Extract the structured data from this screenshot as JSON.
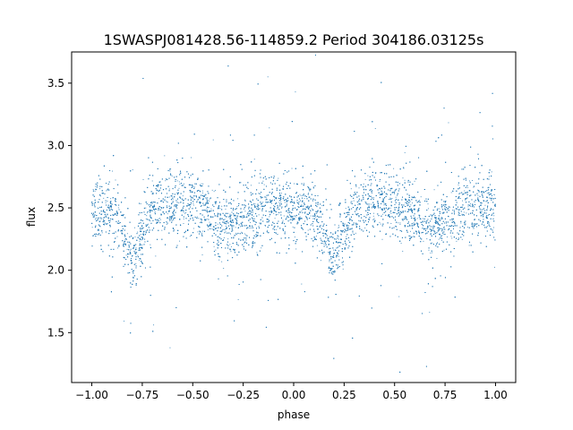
{
  "chart_data": {
    "type": "scatter",
    "title": "1SWASPJ081428.56-114859.2 Period 304186.03125s",
    "xlabel": "phase",
    "ylabel": "flux",
    "xlim": [
      -1.1,
      1.1
    ],
    "ylim": [
      1.1,
      3.75
    ],
    "xticks": [
      -1.0,
      -0.75,
      -0.5,
      -0.25,
      0.0,
      0.25,
      0.5,
      0.75,
      1.0
    ],
    "xtick_labels": [
      "−1.00",
      "−0.75",
      "−0.50",
      "−0.25",
      "0.00",
      "0.25",
      "0.50",
      "0.75",
      "1.00"
    ],
    "yticks": [
      1.5,
      2.0,
      2.5,
      3.0,
      3.5
    ],
    "ytick_labels": [
      "1.5",
      "2.0",
      "2.5",
      "3.0",
      "3.5"
    ],
    "grid": false,
    "marker_color": "#1f77b4",
    "series": [
      {
        "phase_profile": {
          "x": [
            -1.0,
            -0.9,
            -0.85,
            -0.8,
            -0.75,
            -0.7,
            -0.6,
            -0.5,
            -0.42,
            -0.35,
            -0.3,
            -0.25,
            -0.15,
            0.0,
            0.1,
            0.15,
            0.2,
            0.25,
            0.3,
            0.4,
            0.5,
            0.58,
            0.65,
            0.7,
            0.75,
            0.85,
            1.0
          ],
          "y": [
            2.45,
            2.45,
            2.3,
            2.08,
            2.3,
            2.5,
            2.55,
            2.55,
            2.45,
            2.35,
            2.33,
            2.4,
            2.5,
            2.5,
            2.45,
            2.3,
            2.08,
            2.3,
            2.5,
            2.55,
            2.55,
            2.45,
            2.35,
            2.33,
            2.4,
            2.5,
            2.5
          ]
        },
        "scatter_sigma": 0.13,
        "n_points": 9000
      }
    ]
  }
}
